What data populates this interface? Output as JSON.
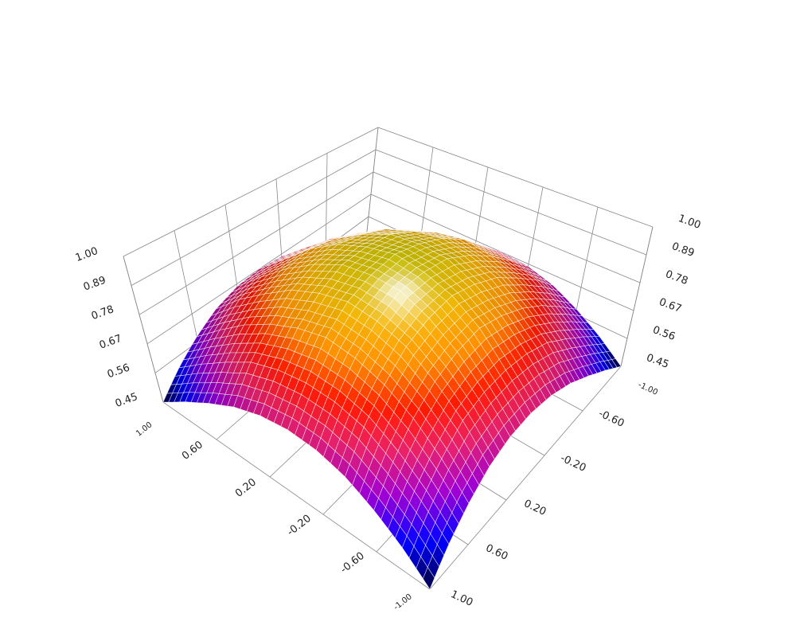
{
  "chart_data": {
    "type": "surface",
    "title": "",
    "x_axis": {
      "label": "",
      "range": [
        -1,
        1
      ],
      "ticks": [
        "-1.00",
        "-0.60",
        "-0.20",
        "0.20",
        "0.60",
        "1.00"
      ]
    },
    "y_axis": {
      "label": "",
      "range": [
        -1,
        1
      ],
      "ticks": [
        "-1.00",
        "-0.60",
        "-0.20",
        "0.20",
        "0.60",
        "1.00"
      ]
    },
    "z_axis": {
      "label": "",
      "range": [
        0.45,
        1.0
      ],
      "ticks": [
        "0.45",
        "0.56",
        "0.67",
        "0.78",
        "0.89",
        "1.00"
      ]
    },
    "grid": true,
    "colormap": [
      "#000033",
      "#0000ff",
      "#9900cc",
      "#e0206a",
      "#ff1a00",
      "#ff8c00",
      "#f0b400",
      "#c8c000"
    ],
    "mesh_line_color": "#ffffff",
    "x": [
      -1,
      -0.8,
      -0.6,
      -0.4,
      -0.2,
      0,
      0.2,
      0.4,
      0.6,
      0.8,
      1
    ],
    "y": [
      -1,
      -0.8,
      -0.6,
      -0.4,
      -0.2,
      0,
      0.2,
      0.4,
      0.6,
      0.8,
      1
    ],
    "z": [
      [
        0.45,
        0.52,
        0.58,
        0.63,
        0.66,
        0.67,
        0.66,
        0.63,
        0.58,
        0.52,
        0.45
      ],
      [
        0.52,
        0.6,
        0.67,
        0.73,
        0.76,
        0.77,
        0.76,
        0.73,
        0.67,
        0.6,
        0.52
      ],
      [
        0.58,
        0.67,
        0.75,
        0.81,
        0.85,
        0.87,
        0.85,
        0.81,
        0.75,
        0.67,
        0.58
      ],
      [
        0.63,
        0.73,
        0.81,
        0.88,
        0.92,
        0.94,
        0.92,
        0.88,
        0.81,
        0.73,
        0.63
      ],
      [
        0.66,
        0.76,
        0.85,
        0.92,
        0.97,
        0.98,
        0.97,
        0.92,
        0.85,
        0.76,
        0.66
      ],
      [
        0.67,
        0.77,
        0.87,
        0.94,
        0.98,
        1.0,
        0.98,
        0.94,
        0.87,
        0.77,
        0.67
      ],
      [
        0.66,
        0.76,
        0.85,
        0.92,
        0.97,
        0.98,
        0.97,
        0.92,
        0.85,
        0.76,
        0.66
      ],
      [
        0.63,
        0.73,
        0.81,
        0.88,
        0.92,
        0.94,
        0.92,
        0.88,
        0.81,
        0.73,
        0.63
      ],
      [
        0.58,
        0.67,
        0.75,
        0.81,
        0.85,
        0.87,
        0.85,
        0.81,
        0.75,
        0.67,
        0.58
      ],
      [
        0.52,
        0.6,
        0.67,
        0.73,
        0.76,
        0.77,
        0.76,
        0.73,
        0.67,
        0.6,
        0.52
      ],
      [
        0.45,
        0.52,
        0.58,
        0.63,
        0.66,
        0.67,
        0.66,
        0.63,
        0.58,
        0.52,
        0.45
      ]
    ]
  }
}
